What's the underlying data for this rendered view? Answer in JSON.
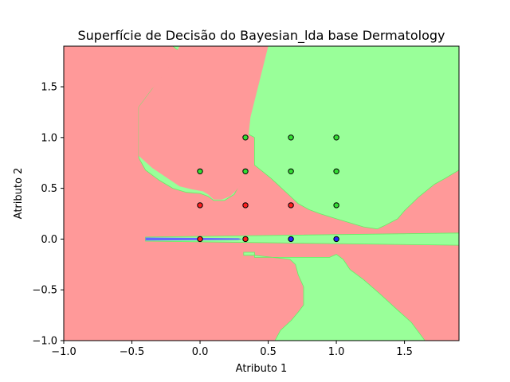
{
  "chart_data": {
    "type": "scatter",
    "title": "Superfície de Decisão do Bayesian_lda base Dermatology",
    "xlabel": "Atributo 1",
    "ylabel": "Atributo 2",
    "xlim": [
      -1.0,
      1.9
    ],
    "ylim": [
      -1.0,
      1.9
    ],
    "x_ticks": [
      -1.0,
      -0.5,
      0.0,
      0.5,
      1.0,
      1.5
    ],
    "y_ticks": [
      -1.0,
      -0.5,
      0.0,
      0.5,
      1.0,
      1.5
    ],
    "x_tick_labels": [
      "−1.0",
      "−0.5",
      "0.0",
      "0.5",
      "1.0",
      "1.5"
    ],
    "y_tick_labels": [
      "−1.0",
      "−0.5",
      "0.0",
      "0.5",
      "1.0",
      "1.5"
    ],
    "grid": false,
    "colors": {
      "red_region": "#ff9999",
      "green_region": "#99ff99",
      "blue_region": "#6666ff",
      "red_point": "#ff2020",
      "green_point": "#33dd33",
      "blue_point": "#2222ff",
      "contour_line": "#66ee66"
    },
    "regions": [
      {
        "color": "green",
        "polygon": [
          [
            0.53,
            1.9
          ],
          [
            1.9,
            1.9
          ],
          [
            1.9,
            0.68
          ],
          [
            1.8,
            0.6
          ],
          [
            1.72,
            0.54
          ],
          [
            1.6,
            0.41
          ],
          [
            1.5,
            0.28
          ],
          [
            1.45,
            0.2
          ],
          [
            1.35,
            0.13
          ],
          [
            1.3,
            0.1
          ],
          [
            1.2,
            0.12
          ],
          [
            1.0,
            0.2
          ],
          [
            0.88,
            0.25
          ],
          [
            0.8,
            0.29
          ],
          [
            0.72,
            0.35
          ],
          [
            0.64,
            0.45
          ],
          [
            0.52,
            0.6
          ],
          [
            0.4,
            0.73
          ],
          [
            0.4,
            1.0
          ],
          [
            0.33,
            1.05
          ],
          [
            0.3,
            1.1
          ],
          [
            0.25,
            1.2
          ],
          [
            0.15,
            1.3
          ],
          [
            0.08,
            1.4
          ],
          [
            -0.05,
            1.6
          ],
          [
            -0.1,
            1.72
          ],
          [
            -0.15,
            1.85
          ],
          [
            -0.2,
            1.9
          ]
        ]
      },
      {
        "color": "green",
        "polygon": [
          [
            -0.4,
            0.02
          ],
          [
            1.9,
            0.06
          ],
          [
            1.9,
            -0.06
          ],
          [
            -0.4,
            -0.02
          ]
        ]
      },
      {
        "color": "green",
        "polygon": [
          [
            0.32,
            -0.13
          ],
          [
            0.4,
            -0.13
          ],
          [
            0.4,
            -0.18
          ],
          [
            0.95,
            -0.18
          ],
          [
            1.0,
            -0.15
          ],
          [
            1.05,
            -0.2
          ],
          [
            1.1,
            -0.3
          ],
          [
            1.2,
            -0.4
          ],
          [
            1.32,
            -0.54
          ],
          [
            1.45,
            -0.7
          ],
          [
            1.55,
            -0.82
          ],
          [
            1.65,
            -1.0
          ],
          [
            0.55,
            -1.0
          ],
          [
            0.59,
            -0.9
          ],
          [
            0.67,
            -0.8
          ],
          [
            0.72,
            -0.72
          ],
          [
            0.76,
            -0.65
          ],
          [
            0.76,
            -0.47
          ],
          [
            0.72,
            -0.35
          ],
          [
            0.7,
            -0.25
          ],
          [
            0.66,
            -0.2
          ],
          [
            0.4,
            -0.16
          ],
          [
            0.32,
            -0.16
          ]
        ]
      },
      {
        "color": "green",
        "polygon": [
          [
            -0.45,
            1.05
          ],
          [
            -0.45,
            1.3
          ],
          [
            -0.35,
            1.48
          ],
          [
            -0.25,
            1.6
          ],
          [
            -0.1,
            1.5
          ],
          [
            0.15,
            1.3
          ],
          [
            0.28,
            1.17
          ],
          [
            0.33,
            1.0
          ],
          [
            0.33,
            0.85
          ],
          [
            0.31,
            0.68
          ],
          [
            0.3,
            0.56
          ],
          [
            0.25,
            0.44
          ],
          [
            0.18,
            0.38
          ],
          [
            0.1,
            0.38
          ],
          [
            0.06,
            0.42
          ],
          [
            0.0,
            0.45
          ],
          [
            -0.1,
            0.46
          ],
          [
            -0.2,
            0.5
          ],
          [
            -0.3,
            0.58
          ],
          [
            -0.4,
            0.68
          ],
          [
            -0.45,
            0.8
          ]
        ]
      },
      {
        "color": "red",
        "polygon": [
          [
            0.5,
            1.9
          ],
          [
            0.37,
            1.2
          ],
          [
            0.35,
            0.95
          ],
          [
            0.33,
            0.82
          ],
          [
            0.33,
            0.68
          ],
          [
            0.32,
            0.58
          ],
          [
            0.29,
            0.52
          ],
          [
            0.26,
            0.47
          ],
          [
            0.22,
            0.42
          ],
          [
            0.16,
            0.39
          ],
          [
            0.1,
            0.39
          ],
          [
            0.06,
            0.44
          ],
          [
            0.02,
            0.47
          ],
          [
            -0.06,
            0.49
          ],
          [
            -0.15,
            0.52
          ],
          [
            -0.35,
            0.7
          ],
          [
            -0.45,
            0.82
          ],
          [
            -0.45,
            1.05
          ],
          [
            -0.45,
            1.3
          ],
          [
            -0.35,
            1.48
          ],
          [
            -0.25,
            1.65
          ],
          [
            -0.15,
            1.9
          ]
        ]
      },
      {
        "color": "blue",
        "polygon": [
          [
            -0.4,
            0.015
          ],
          [
            0.28,
            0.008
          ],
          [
            0.31,
            0.0
          ],
          [
            0.28,
            -0.008
          ],
          [
            -0.4,
            -0.015
          ]
        ]
      }
    ],
    "points": [
      {
        "x": 0.0,
        "y": 0.0,
        "class": "red"
      },
      {
        "x": 0.0,
        "y": 0.333,
        "class": "red"
      },
      {
        "x": 0.333,
        "y": 0.0,
        "class": "red"
      },
      {
        "x": 0.333,
        "y": 0.333,
        "class": "red"
      },
      {
        "x": 0.667,
        "y": 0.333,
        "class": "red"
      },
      {
        "x": 0.0,
        "y": 0.667,
        "class": "green"
      },
      {
        "x": 0.333,
        "y": 0.667,
        "class": "green"
      },
      {
        "x": 0.333,
        "y": 1.0,
        "class": "green"
      },
      {
        "x": 0.667,
        "y": 0.667,
        "class": "green"
      },
      {
        "x": 0.667,
        "y": 1.0,
        "class": "green"
      },
      {
        "x": 1.0,
        "y": 0.333,
        "class": "green"
      },
      {
        "x": 1.0,
        "y": 0.667,
        "class": "green"
      },
      {
        "x": 1.0,
        "y": 1.0,
        "class": "green"
      },
      {
        "x": 0.667,
        "y": 0.0,
        "class": "blue"
      },
      {
        "x": 1.0,
        "y": 0.0,
        "class": "blue"
      }
    ]
  }
}
